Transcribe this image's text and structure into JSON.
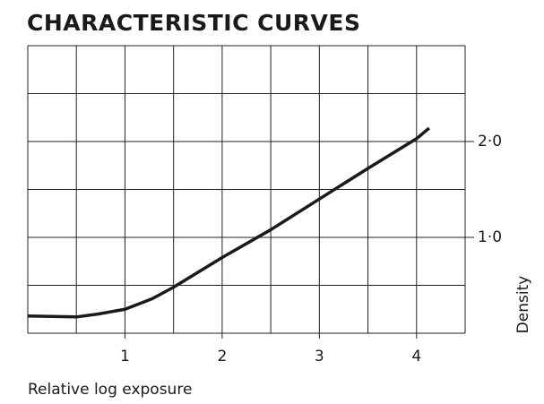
{
  "chart_data": {
    "type": "line",
    "title": "CHARACTERISTIC CURVES",
    "x_label": "Relative log exposure",
    "y_label": "Density",
    "x": [
      0,
      0.5,
      0.72,
      1.0,
      1.28,
      1.5,
      2.0,
      2.5,
      3.0,
      3.5,
      4.0,
      4.13
    ],
    "series": [
      {
        "color": "#1a1a1a",
        "values": [
          0.18,
          0.17,
          0.2,
          0.25,
          0.36,
          0.48,
          0.79,
          1.08,
          1.4,
          1.72,
          2.03,
          2.14
        ]
      }
    ],
    "xlim": [
      0,
      4.5
    ],
    "ylim": [
      0,
      3.0
    ],
    "xticks": [
      1,
      2,
      3,
      4
    ],
    "yticks": [
      {
        "value": 1.0,
        "label": "1·0"
      },
      {
        "value": 2.0,
        "label": "2·0"
      }
    ],
    "xgrid": [
      0,
      0.5,
      1,
      1.5,
      2,
      2.5,
      3,
      3.5,
      4,
      4.5
    ],
    "ygrid": [
      0,
      0.5,
      1,
      1.5,
      2,
      2.5,
      3
    ],
    "y_axis_side": "right"
  }
}
